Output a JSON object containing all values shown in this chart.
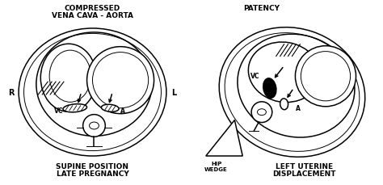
{
  "bg_color": "#ffffff",
  "fig_bg": "#ffffff",
  "title1_lines": [
    "COMPRESSED",
    "VENA CAVA - AORTA"
  ],
  "title2": "PATENCY",
  "label_R": "R",
  "label_L": "L",
  "label_VC1": "VC",
  "label_A1": "A",
  "label_VC2": "VC",
  "label_A2": "A",
  "caption1_lines": [
    "SUPINE POSITION",
    "LATE PREGNANCY"
  ],
  "caption2_lines": [
    "LEFT UTERINE",
    "DISPLACEMENT"
  ],
  "label_hip": "HIP\nWEDGE",
  "font_size_title": 6.5,
  "font_size_label": 5.5,
  "font_size_caption": 6.5,
  "font_size_RL": 7
}
